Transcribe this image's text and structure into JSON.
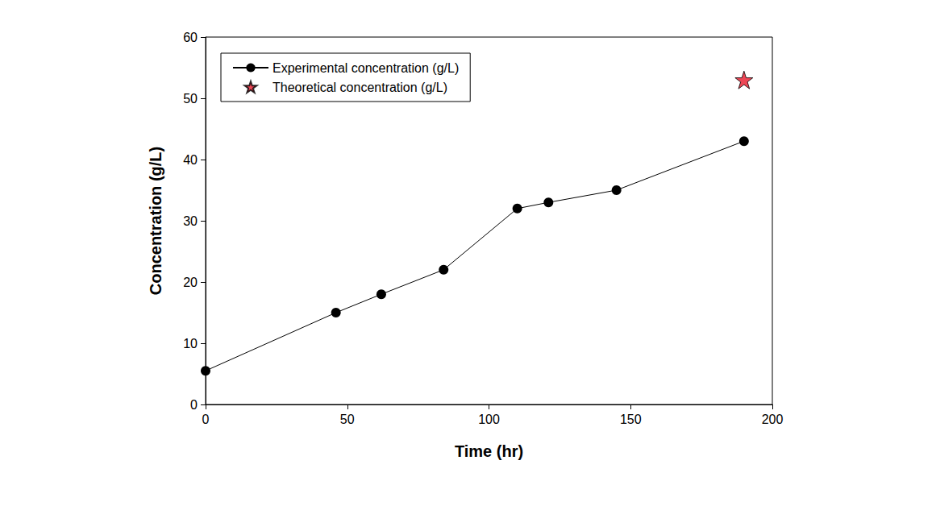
{
  "chart_data": {
    "type": "line",
    "x_label": "Time (hr)",
    "y_label": "Concentration (g/L)",
    "x": [
      0,
      46,
      62,
      84,
      110,
      121,
      145,
      190
    ],
    "xlim": [
      0,
      200
    ],
    "xticks": [
      0,
      50,
      100,
      150,
      200
    ],
    "ylim": [
      0,
      60
    ],
    "yticks": [
      0,
      10,
      20,
      30,
      40,
      50,
      60
    ],
    "grid": false,
    "legend": "upper left",
    "series": [
      {
        "name": "Experimental concentration (g/L)",
        "type": "line",
        "color": "#000000",
        "marker": "circle",
        "line_style": "solid",
        "values": [
          5.5,
          15,
          18,
          22,
          32,
          33,
          35,
          43
        ]
      },
      {
        "name": "Theoretical concentration (g/L)",
        "type": "scatter",
        "color": "#e8192c",
        "marker": "star",
        "values": [
          null,
          null,
          null,
          null,
          null,
          null,
          null,
          53
        ]
      }
    ]
  }
}
